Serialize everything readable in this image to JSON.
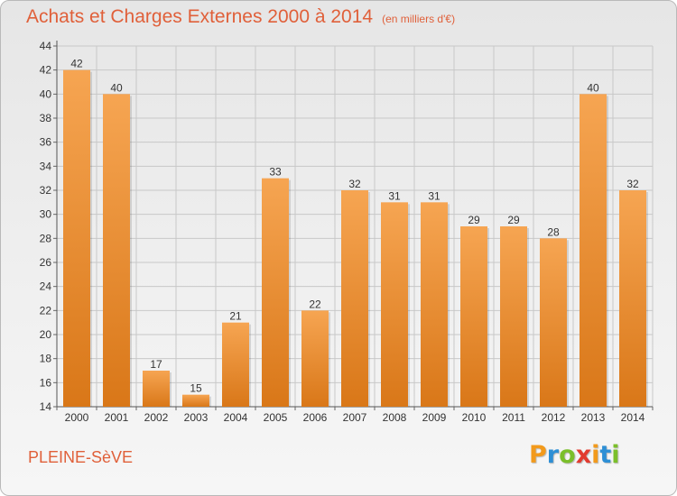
{
  "title": "Achats et Charges Externes 2000 à 2014",
  "unit_label": "(en milliers d'€)",
  "commune": "PLEINE-SèVE",
  "logo": {
    "text": "Proxiti",
    "letters": [
      "P",
      "r",
      "o",
      "x",
      "i",
      "t",
      "i"
    ],
    "colors": [
      "#f29a1c",
      "#2d8fd5",
      "#7bbf2a",
      "#e23b2f",
      "#f29a1c",
      "#2d8fd5",
      "#7bbf2a"
    ]
  },
  "colors": {
    "title": "#e0603a",
    "bar_top": "#f6a552",
    "bar_bottom": "#d97718",
    "grid": "#c8c8c8"
  },
  "chart_data": {
    "type": "bar",
    "categories": [
      "2000",
      "2001",
      "2002",
      "2003",
      "2004",
      "2005",
      "2006",
      "2007",
      "2008",
      "2009",
      "2010",
      "2011",
      "2012",
      "2013",
      "2014"
    ],
    "values": [
      42,
      40,
      17,
      15,
      21,
      33,
      22,
      32,
      31,
      31,
      29,
      29,
      28,
      40,
      32
    ],
    "data_labels": [
      "42",
      "40",
      "17",
      "15",
      "21",
      "33",
      "22",
      "32",
      "31",
      "31",
      "29",
      "29",
      "28",
      "40",
      "32"
    ],
    "ylim": [
      14,
      44
    ],
    "yticks": [
      14,
      16,
      18,
      20,
      22,
      24,
      26,
      28,
      30,
      32,
      34,
      36,
      38,
      40,
      42,
      44
    ],
    "ytick_labels": [
      "14",
      "16",
      "18",
      "20",
      "22",
      "24",
      "26",
      "28",
      "30",
      "32",
      "34",
      "36",
      "38",
      "40",
      "42",
      "44"
    ],
    "grid": true,
    "xlabel": "",
    "ylabel": ""
  }
}
